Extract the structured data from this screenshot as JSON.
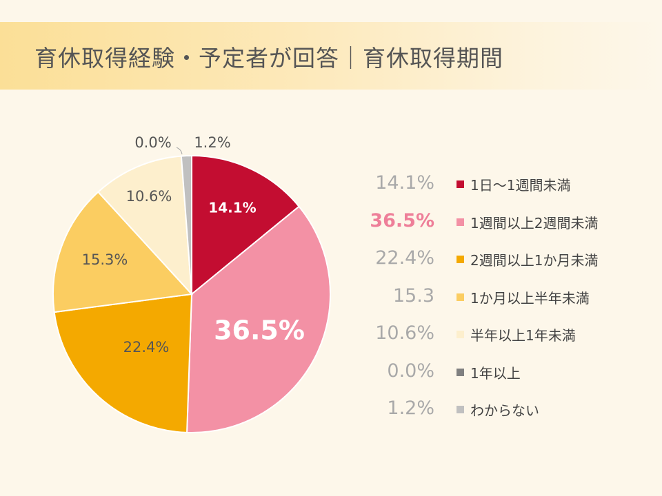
{
  "header": {
    "title": "育休取得経験・予定者が回答｜育休取得期間"
  },
  "chart_data": {
    "type": "pie",
    "title": "育休取得経験・予定者が回答｜育休取得期間",
    "slices": [
      {
        "label": "1日～1週間未満",
        "value": 14.1,
        "slice_label": "14.1%",
        "legend_value": "14.1%",
        "color": "#c30d31",
        "label_color": "#ffffff",
        "highlight": false
      },
      {
        "label": "1週間以上2週間未満",
        "value": 36.5,
        "slice_label": "36.5%",
        "legend_value": "36.5%",
        "color": "#f391a5",
        "label_color": "#ffffff",
        "highlight": true
      },
      {
        "label": "2週間以上1か月未満",
        "value": 22.4,
        "slice_label": "22.4%",
        "legend_value": "22.4%",
        "color": "#f4a900",
        "label_color": "#555555",
        "highlight": false
      },
      {
        "label": "1か月以上半年未満",
        "value": 15.3,
        "slice_label": "15.3%",
        "legend_value": "15.3",
        "color": "#fbcd61",
        "label_color": "#555555",
        "highlight": false
      },
      {
        "label": "半年以上1年未満",
        "value": 10.6,
        "slice_label": "10.6%",
        "legend_value": "10.6%",
        "color": "#fdefcd",
        "label_color": "#555555",
        "highlight": false
      },
      {
        "label": "1年以上",
        "value": 0.0,
        "slice_label": "0.0%",
        "legend_value": "0.0%",
        "color": "#808080",
        "label_color": "#555555",
        "highlight": false
      },
      {
        "label": "わからない",
        "value": 1.2,
        "slice_label": "1.2%",
        "legend_value": "1.2%",
        "color": "#c0c0c0",
        "label_color": "#555555",
        "highlight": false
      }
    ],
    "legend_position": "right"
  }
}
